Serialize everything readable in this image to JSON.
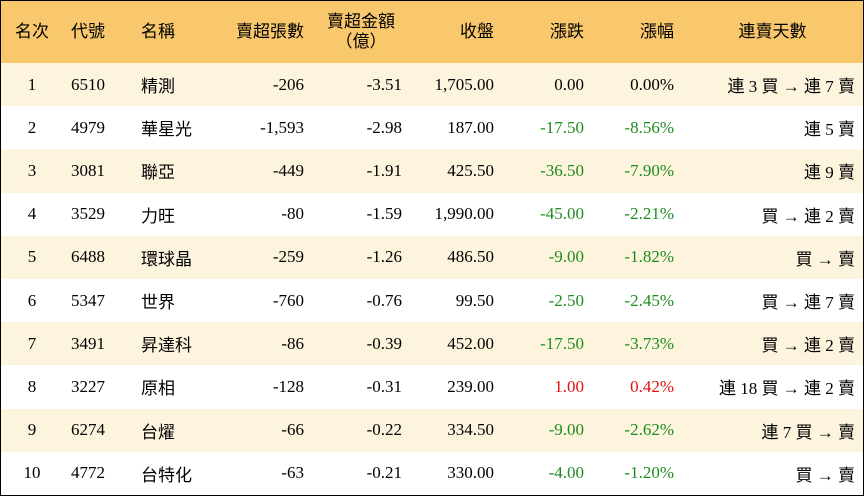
{
  "table": {
    "header": [
      "名次",
      "代號",
      "名稱",
      "賣超張數",
      [
        "賣超金額",
        "（億）"
      ],
      "收盤",
      "漲跌",
      "漲幅",
      "連賣天數"
    ],
    "rows": [
      [
        "1",
        "6510",
        "精測",
        "-206",
        "-3.51",
        "1,705.00",
        "0.00",
        "0.00%",
        "連 3 買 → 連 7 賣"
      ],
      [
        "2",
        "4979",
        "華星光",
        "-1,593",
        "-2.98",
        "187.00",
        "-17.50",
        "-8.56%",
        "連 5 賣"
      ],
      [
        "3",
        "3081",
        "聯亞",
        "-449",
        "-1.91",
        "425.50",
        "-36.50",
        "-7.90%",
        "連 9 賣"
      ],
      [
        "4",
        "3529",
        "力旺",
        "-80",
        "-1.59",
        "1,990.00",
        "-45.00",
        "-2.21%",
        "買 → 連 2 賣"
      ],
      [
        "5",
        "6488",
        "環球晶",
        "-259",
        "-1.26",
        "486.50",
        "-9.00",
        "-1.82%",
        "買 → 賣"
      ],
      [
        "6",
        "5347",
        "世界",
        "-760",
        "-0.76",
        "99.50",
        "-2.50",
        "-2.45%",
        "買 → 連 7 賣"
      ],
      [
        "7",
        "3491",
        "昇達科",
        "-86",
        "-0.39",
        "452.00",
        "-17.50",
        "-3.73%",
        "買 → 連 2 賣"
      ],
      [
        "8",
        "3227",
        "原相",
        "-128",
        "-0.31",
        "239.00",
        "1.00",
        "0.42%",
        "連 18 買 → 連 2 賣"
      ],
      [
        "9",
        "6274",
        "台燿",
        "-66",
        "-0.22",
        "334.50",
        "-9.00",
        "-2.62%",
        "連 7 買 → 賣"
      ],
      [
        "10",
        "4772",
        "台特化",
        "-63",
        "-0.21",
        "330.00",
        "-4.00",
        "-1.20%",
        "買 → 賣"
      ]
    ]
  }
}
